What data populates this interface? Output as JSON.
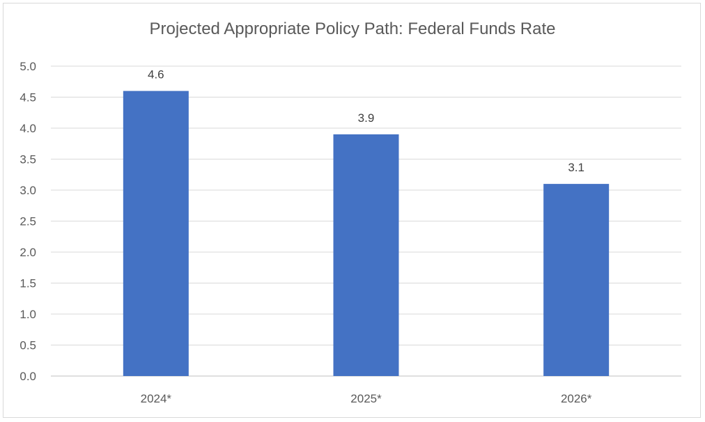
{
  "chart_data": {
    "type": "bar",
    "title": "Projected Appropriate Policy Path: Federal Funds Rate",
    "categories": [
      "2024*",
      "2025*",
      "2026*"
    ],
    "values": [
      4.6,
      3.9,
      3.1
    ],
    "data_labels": [
      "4.6",
      "3.9",
      "3.1"
    ],
    "y_ticks": [
      "0.0",
      "0.5",
      "1.0",
      "1.5",
      "2.0",
      "2.5",
      "3.0",
      "3.5",
      "4.0",
      "4.5",
      "5.0"
    ],
    "ylim": [
      0,
      5
    ],
    "grid": true,
    "legend": "none",
    "bar_color": "#4472C4"
  }
}
